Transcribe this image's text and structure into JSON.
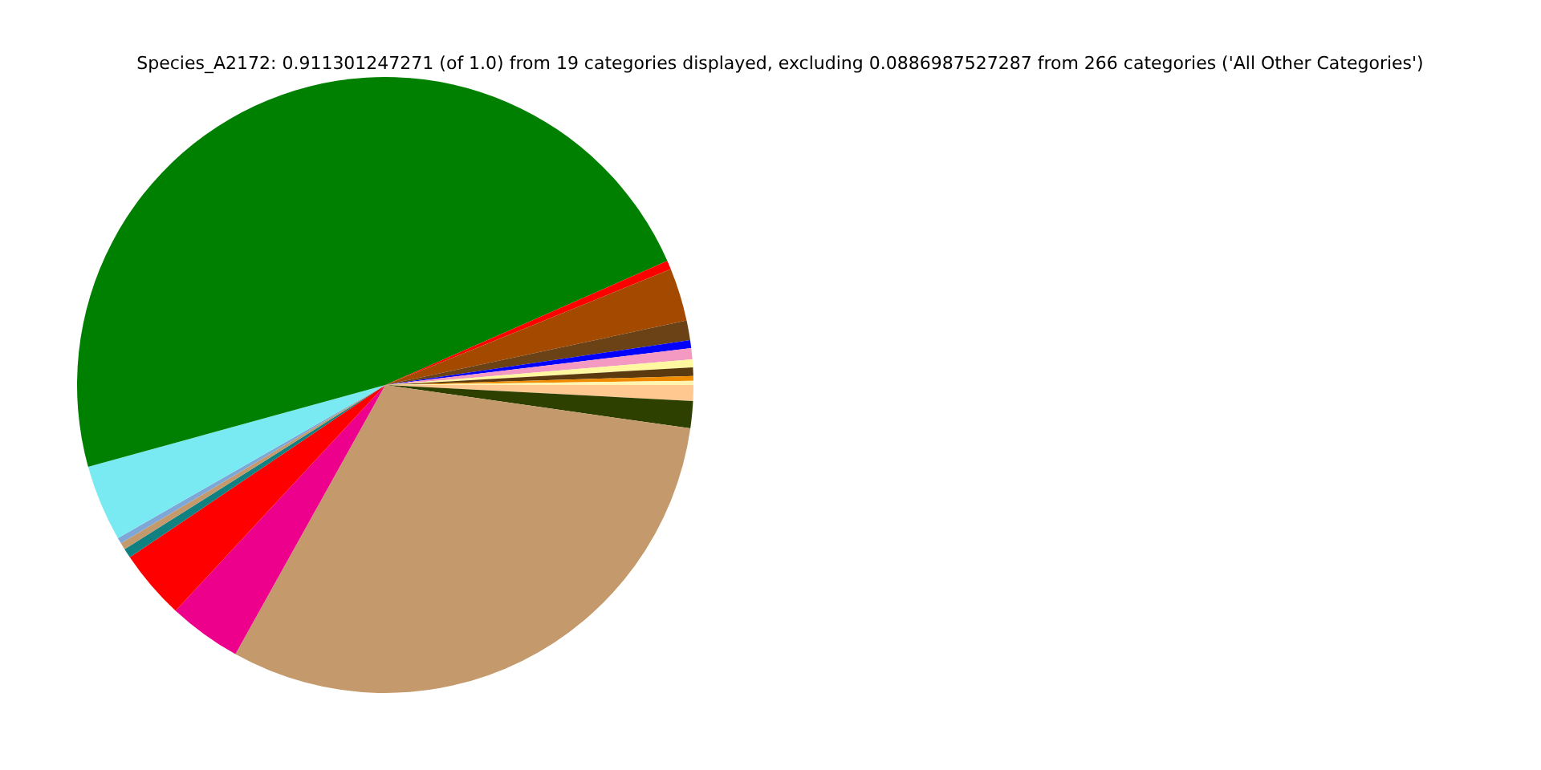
{
  "chart_data": {
    "type": "pie",
    "title": "Species_A2172: 0.911301247271 (of 1.0) from 19 categories displayed, excluding 0.0886987527287 from 266 categories ('All Other Categories')",
    "categories": [
      null,
      null,
      null,
      null,
      null,
      null,
      null,
      null,
      null,
      null,
      null,
      null,
      null,
      null,
      null,
      null,
      null,
      null,
      null
    ],
    "values": [
      0.83,
      1.42,
      30.83,
      3.83,
      3.64,
      0.5,
      0.36,
      0.31,
      4.0,
      47.68,
      0.46,
      2.78,
      1.03,
      0.42,
      0.58,
      0.42,
      0.44,
      0.25,
      0.22
    ],
    "colors": [
      "#ffc890",
      "#2d4000",
      "#c49a6c",
      "#ec008c",
      "#ff0000",
      "#108080",
      "#c49a6c",
      "#7ea6d6",
      "#7aeaf2",
      "#008000",
      "#ff0000",
      "#a44a00",
      "#6b4215",
      "#0000ff",
      "#f49ac2",
      "#fff8a0",
      "#5c3a10",
      "#f08c00",
      "#fff5b0"
    ],
    "legend": false
  }
}
